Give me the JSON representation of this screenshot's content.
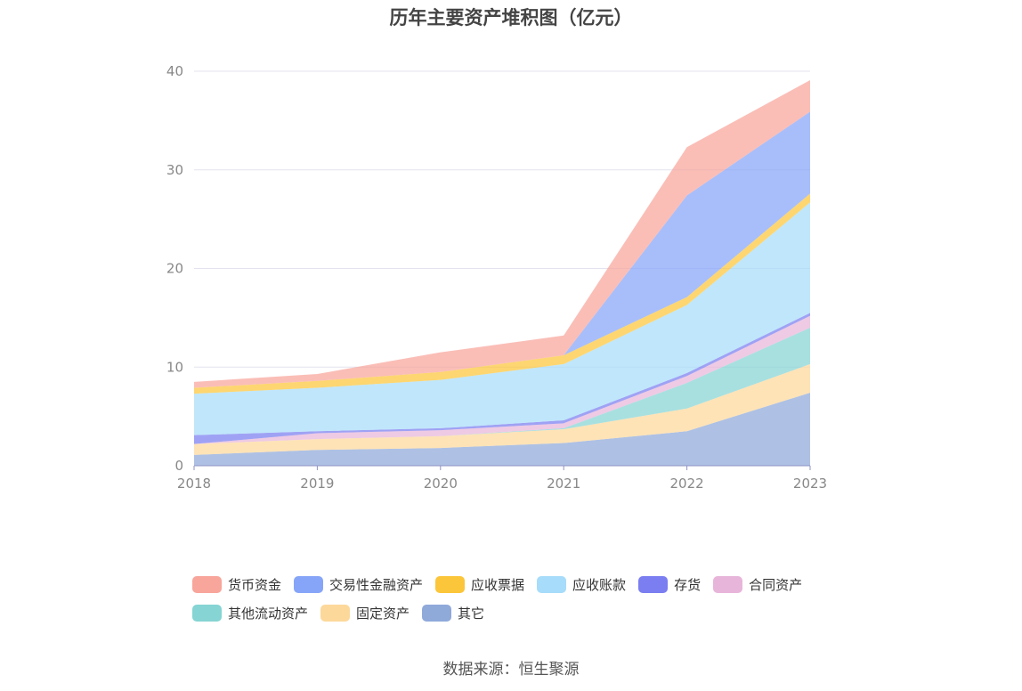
{
  "chart_data": {
    "type": "area",
    "stacked": true,
    "title": "历年主要资产堆积图（亿元）",
    "xlabel": "",
    "ylabel": "",
    "x": [
      "2018",
      "2019",
      "2020",
      "2021",
      "2022",
      "2023"
    ],
    "y_ticks": [
      "0",
      "10",
      "20",
      "30",
      "40"
    ],
    "ylim": [
      0,
      40
    ],
    "grid": true,
    "legend_position": "bottom",
    "series": [
      {
        "name": "其它",
        "color": "#8fa9d9",
        "values": [
          1.1,
          1.6,
          1.8,
          2.3,
          3.5,
          7.4
        ]
      },
      {
        "name": "固定资产",
        "color": "#fdd89b",
        "values": [
          1.1,
          1.1,
          1.2,
          1.4,
          2.3,
          2.9
        ]
      },
      {
        "name": "其他流动资产",
        "color": "#86d4d4",
        "values": [
          0.0,
          0.0,
          0.0,
          0.1,
          2.6,
          3.7
        ]
      },
      {
        "name": "合同资产",
        "color": "#e8b5da",
        "values": [
          0.0,
          0.6,
          0.6,
          0.5,
          0.7,
          1.2
        ]
      },
      {
        "name": "存货",
        "color": "#7a7ef0",
        "values": [
          0.9,
          0.2,
          0.2,
          0.3,
          0.3,
          0.3
        ]
      },
      {
        "name": "应收账款",
        "color": "#a7dcfa",
        "values": [
          4.2,
          4.4,
          4.9,
          5.7,
          6.9,
          11.2
        ]
      },
      {
        "name": "应收票据",
        "color": "#fcc63a",
        "values": [
          0.6,
          0.7,
          0.8,
          0.9,
          0.8,
          0.9
        ]
      },
      {
        "name": "交易性金融资产",
        "color": "#87a5f8",
        "values": [
          0.0,
          0.0,
          0.0,
          0.0,
          10.3,
          8.3
        ]
      },
      {
        "name": "货币资金",
        "color": "#f8a59b",
        "values": [
          0.6,
          0.7,
          2.0,
          2.0,
          4.9,
          3.2
        ]
      }
    ]
  },
  "legend": {
    "row1": [
      "货币资金",
      "交易性金融资产",
      "应收票据",
      "应收账款",
      "存货",
      "合同资产"
    ],
    "row2": [
      "其他流动资产",
      "固定资产",
      "其它"
    ]
  },
  "source_text": "数据来源：恒生聚源"
}
